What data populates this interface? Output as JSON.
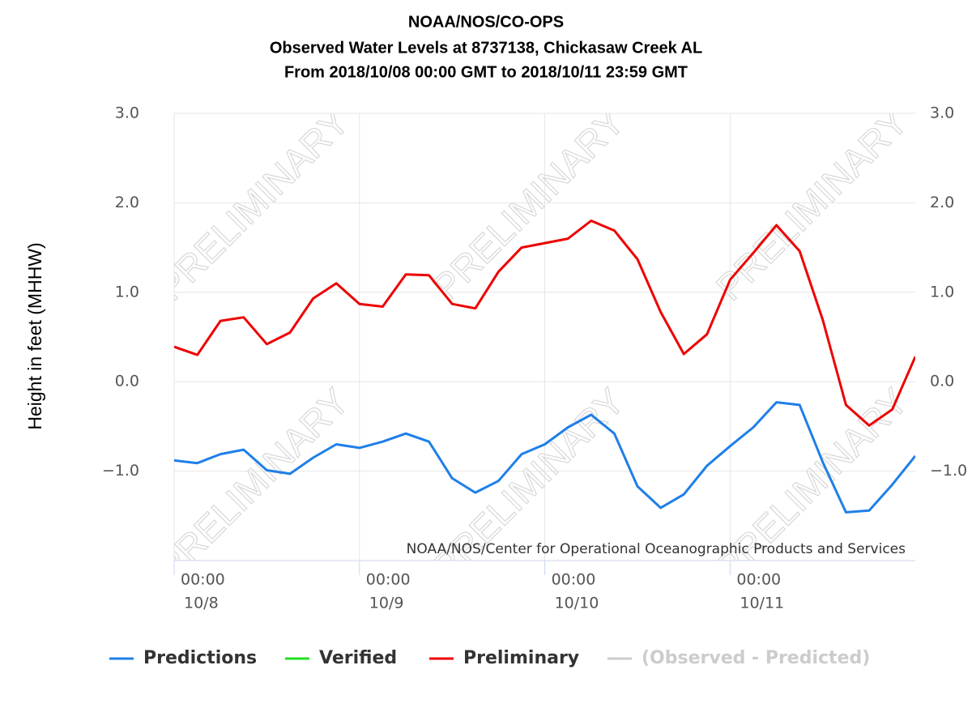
{
  "chart_data": {
    "type": "line",
    "title": [
      "NOAA/NOS/CO-OPS",
      "Observed Water Levels at 8737138, Chickasaw Creek AL",
      "From 2018/10/08 00:00 GMT to 2018/10/11 23:59 GMT"
    ],
    "y_label": "Height in feet (MHHW)",
    "watermark": "PRELIMINARY",
    "credit": "NOAA/NOS/Center for Operational Oceanographic Products and Services",
    "x": [
      "10/8 00:00",
      "10/8 03:00",
      "10/8 06:00",
      "10/8 09:00",
      "10/8 12:00",
      "10/8 15:00",
      "10/8 18:00",
      "10/8 21:00",
      "10/9 00:00",
      "10/9 03:00",
      "10/9 06:00",
      "10/9 09:00",
      "10/9 12:00",
      "10/9 15:00",
      "10/9 18:00",
      "10/9 21:00",
      "10/10 00:00",
      "10/10 03:00",
      "10/10 06:00",
      "10/10 09:00",
      "10/10 12:00",
      "10/10 15:00",
      "10/10 18:00",
      "10/10 21:00",
      "10/11 00:00",
      "10/11 03:00",
      "10/11 06:00",
      "10/11 09:00",
      "10/11 12:00",
      "10/11 15:00",
      "10/11 18:00",
      "10/11 21:00",
      "10/11 23:59"
    ],
    "series": [
      {
        "name": "Predictions",
        "color": "#1f7fe8",
        "values": [
          -0.88,
          -0.91,
          -0.81,
          -0.76,
          -0.99,
          -1.03,
          -0.85,
          -0.7,
          -0.74,
          -0.67,
          -0.58,
          -0.67,
          -1.08,
          -1.24,
          -1.11,
          -0.81,
          -0.7,
          -0.51,
          -0.37,
          -0.58,
          -1.17,
          -1.41,
          -1.26,
          -0.94,
          -0.72,
          -0.51,
          -0.23,
          -0.26,
          -0.9,
          -1.46,
          -1.44,
          -1.15,
          -0.83
        ]
      },
      {
        "name": "Verified",
        "color": "#22e022",
        "values": [
          null,
          null,
          null,
          null,
          null,
          null,
          null,
          null,
          null,
          null,
          null,
          null,
          null,
          null,
          null,
          null,
          null,
          null,
          null,
          null,
          null,
          null,
          null,
          null,
          null,
          null,
          null,
          null,
          null,
          null,
          null,
          null,
          null
        ]
      },
      {
        "name": "Preliminary",
        "color": "#ee0000",
        "values": [
          0.39,
          0.3,
          0.68,
          0.72,
          0.42,
          0.55,
          0.93,
          1.1,
          0.87,
          0.84,
          1.2,
          1.19,
          0.87,
          0.82,
          1.23,
          1.5,
          1.55,
          1.6,
          1.8,
          1.69,
          1.37,
          0.78,
          0.31,
          0.53,
          1.14,
          1.44,
          1.75,
          1.46,
          0.69,
          -0.26,
          -0.49,
          -0.31,
          0.28
        ]
      },
      {
        "name": "(Observed - Predicted)",
        "color": "#cccccc",
        "hidden": true,
        "values": [
          null,
          null,
          null,
          null,
          null,
          null,
          null,
          null,
          null,
          null,
          null,
          null,
          null,
          null,
          null,
          null,
          null,
          null,
          null,
          null,
          null,
          null,
          null,
          null,
          null,
          null,
          null,
          null,
          null,
          null,
          null,
          null,
          null
        ]
      }
    ],
    "xlim": [
      "10/8 00:00",
      "10/11 23:59"
    ],
    "xticks": [
      {
        "value": "10/8 00:00",
        "label": [
          "00:00",
          "10/8"
        ]
      },
      {
        "value": "10/9 00:00",
        "label": [
          "00:00",
          "10/9"
        ]
      },
      {
        "value": "10/10 00:00",
        "label": [
          "00:00",
          "10/10"
        ]
      },
      {
        "value": "10/11 00:00",
        "label": [
          "00:00",
          "10/11"
        ]
      }
    ],
    "ylim": [
      -2,
      3
    ],
    "yticks": [
      {
        "value": -1,
        "label": "−1.0"
      },
      {
        "value": 0,
        "label": "0.0"
      },
      {
        "value": 1,
        "label": "1.0"
      },
      {
        "value": 2,
        "label": "2.0"
      },
      {
        "value": 3,
        "label": "3.0"
      }
    ],
    "y2lim": [
      -2,
      3
    ],
    "y2ticks": [
      {
        "value": -1,
        "label": "−1.0"
      },
      {
        "value": 0,
        "label": "0.0"
      },
      {
        "value": 1,
        "label": "1.0"
      },
      {
        "value": 2,
        "label": "2.0"
      },
      {
        "value": 3,
        "label": "3.0"
      }
    ],
    "grid": true
  }
}
